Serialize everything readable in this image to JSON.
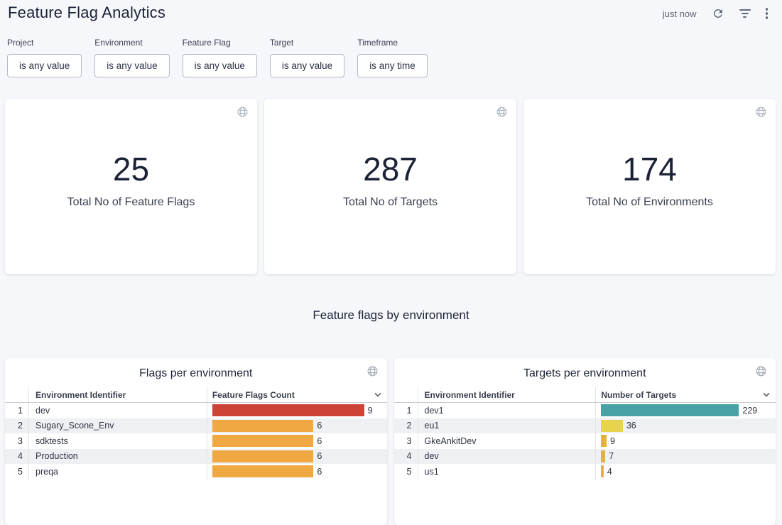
{
  "header": {
    "title": "Feature Flag Analytics",
    "last_refreshed": "just now",
    "icons": [
      "refresh-icon",
      "filter-list-icon",
      "more-vert-icon"
    ]
  },
  "filters": [
    {
      "label": "Project",
      "value": "is any value"
    },
    {
      "label": "Environment",
      "value": "is any value"
    },
    {
      "label": "Feature Flag",
      "value": "is any value"
    },
    {
      "label": "Target",
      "value": "is any value"
    },
    {
      "label": "Timeframe",
      "value": "is any time"
    }
  ],
  "stats": [
    {
      "value": "25",
      "label": "Total No of Feature Flags"
    },
    {
      "value": "287",
      "label": "Total No of Targets"
    },
    {
      "value": "174",
      "label": "Total No of Environments"
    }
  ],
  "section_title": "Feature flags by environment",
  "colors": {
    "page_bg": "#f6f7fa",
    "card_bg": "#ffffff",
    "bar_red": "#cd4437",
    "bar_orange": "#f0a843",
    "bar_teal": "#47a1a5",
    "bar_yellow": "#e8d44c",
    "bar_amber": "#e2b23c",
    "row_stripe": "#eef0f3"
  },
  "chart_data": [
    {
      "type": "table",
      "title": "Flags per environment",
      "columns": [
        "Environment Identifier",
        "Feature Flags Count"
      ],
      "value_max": 9,
      "rows": [
        {
          "rank": "1",
          "env": "dev",
          "value": 9,
          "bar_color": "#cd4437"
        },
        {
          "rank": "2",
          "env": "Sugary_Scone_Env",
          "value": 6,
          "bar_color": "#f0a843"
        },
        {
          "rank": "3",
          "env": "sdktests",
          "value": 6,
          "bar_color": "#f0a843"
        },
        {
          "rank": "4",
          "env": "Production",
          "value": 6,
          "bar_color": "#f0a843"
        },
        {
          "rank": "5",
          "env": "preqa",
          "value": 6,
          "bar_color": "#f0a843"
        }
      ]
    },
    {
      "type": "table",
      "title": "Targets per environment",
      "columns": [
        "Environment Identifier",
        "Number of Targets"
      ],
      "value_max": 229,
      "rows": [
        {
          "rank": "1",
          "env": "dev1",
          "value": 229,
          "bar_color": "#47a1a5"
        },
        {
          "rank": "2",
          "env": "eu1",
          "value": 36,
          "bar_color": "#e8d44c"
        },
        {
          "rank": "3",
          "env": "GkeAnkitDev",
          "value": 9,
          "bar_color": "#e2b23c"
        },
        {
          "rank": "4",
          "env": "dev",
          "value": 7,
          "bar_color": "#e2b23c"
        },
        {
          "rank": "5",
          "env": "us1",
          "value": 4,
          "bar_color": "#e2b23c"
        }
      ]
    }
  ]
}
